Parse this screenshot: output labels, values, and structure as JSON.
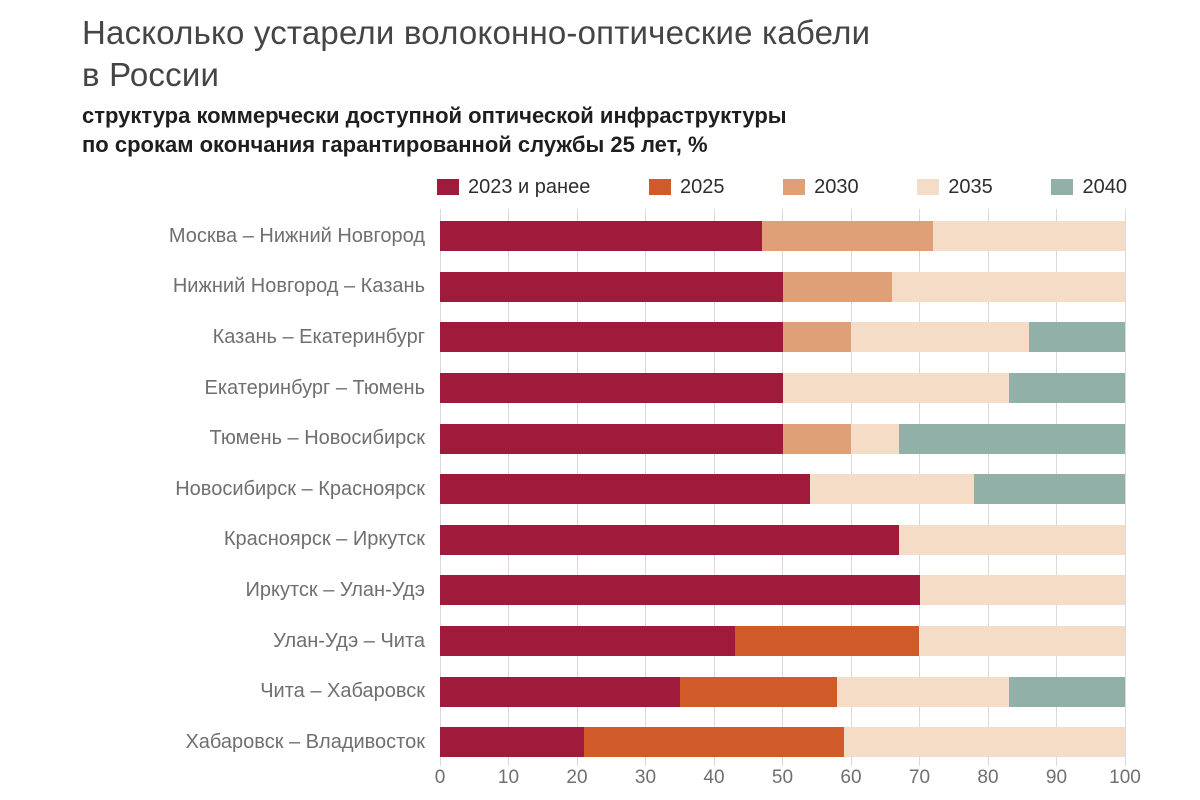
{
  "title": {
    "line1": "Насколько устарели волоконно-оптические кабели",
    "line2": "в России"
  },
  "subtitle": {
    "line1": "структура коммерчески доступной оптической инфраструктуры",
    "line2": "по срокам окончания гарантированной службы 25 лет, %"
  },
  "colors": {
    "background": "#ffffff",
    "gridline": "#d9d9de",
    "title_text": "#454545",
    "subtitle_text": "#1e1e1e",
    "category_text": "#6f6f6f",
    "axis_text": "#6f6f6f"
  },
  "chart_data": {
    "type": "bar",
    "orientation": "horizontal",
    "stacked": true,
    "unit": "%",
    "title": "Насколько устарели волоконно-оптические кабели в России",
    "subtitle": "структура коммерчески доступной оптической инфраструктуры по срокам окончания гарантированной службы 25 лет, %",
    "xlim": [
      0,
      100
    ],
    "x_ticks": [
      0,
      10,
      20,
      30,
      40,
      50,
      60,
      70,
      80,
      90,
      100
    ],
    "grid": true,
    "legend_position": "top",
    "categories": [
      "Москва – Нижний Новгород",
      "Нижний Новгород – Казань",
      "Казань – Екатеринбург",
      "Екатеринбург – Тюмень",
      "Тюмень – Новосибирск",
      "Новосибирск – Красноярск",
      "Красноярск – Иркутск",
      "Иркутск – Улан-Удэ",
      "Улан-Удэ – Чита",
      "Чита – Хабаровск",
      "Хабаровск – Владивосток"
    ],
    "series": [
      {
        "name": "2023 и ранее",
        "color": "#a01b3b",
        "values": [
          47,
          50,
          50,
          50,
          50,
          54,
          67,
          70,
          43,
          35,
          21
        ]
      },
      {
        "name": "2025",
        "color": "#d15a2b",
        "values": [
          0,
          0,
          0,
          0,
          0,
          0,
          0,
          0,
          27,
          23,
          38
        ]
      },
      {
        "name": "2030",
        "color": "#dfa077",
        "values": [
          25,
          16,
          10,
          0,
          10,
          0,
          0,
          0,
          0,
          0,
          0
        ]
      },
      {
        "name": "2035",
        "color": "#f5dcc6",
        "values": [
          28,
          34,
          26,
          33,
          7,
          24,
          33,
          30,
          30,
          25,
          41
        ]
      },
      {
        "name": "2040",
        "color": "#91b1a8",
        "values": [
          0,
          0,
          14,
          17,
          33,
          22,
          0,
          0,
          0,
          17,
          0
        ]
      }
    ]
  }
}
